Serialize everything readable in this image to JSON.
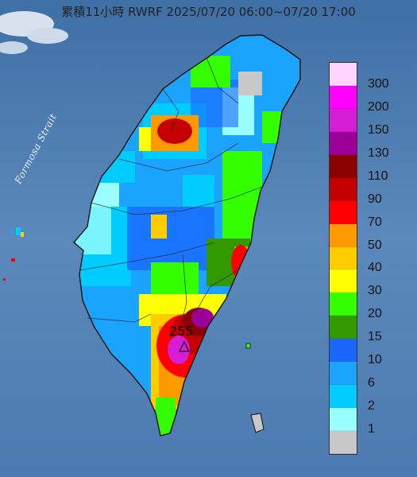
{
  "title": "累積11小時 RWRF 2025/07/20 06:00~07/20 17:00",
  "strait_label": "Formosa Strait",
  "max_marker_value": "255",
  "legend": {
    "labels": [
      "300",
      "200",
      "150",
      "130",
      "110",
      "90",
      "70",
      "50",
      "40",
      "30",
      "20",
      "15",
      "10",
      "6",
      "2",
      "1"
    ],
    "colors": [
      "#ffd5ff",
      "#ff00ff",
      "#d41dd4",
      "#9b009b",
      "#8b0000",
      "#c40000",
      "#ff0000",
      "#ff9900",
      "#ffcc00",
      "#ffff00",
      "#33ff00",
      "#339900",
      "#1a66ff",
      "#1aa3ff",
      "#00ccff",
      "#99ffff",
      "#c8c8c8"
    ]
  }
}
